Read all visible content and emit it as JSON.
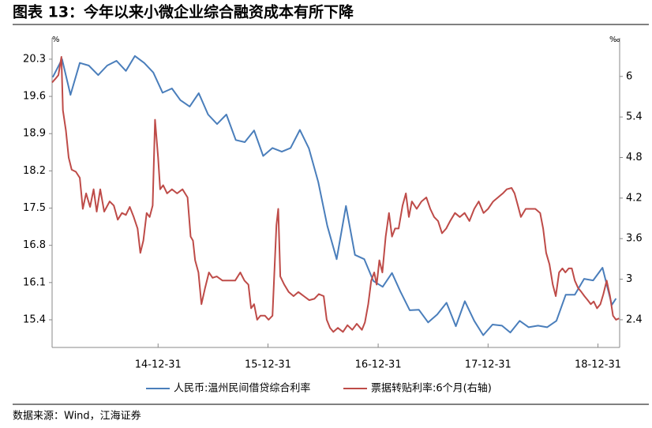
{
  "chart_data": {
    "type": "line",
    "title": "图表 13：今年以来小微企业综合融资成本有所下降",
    "source": "数据来源：Wind，江海证券",
    "y_unit": "%",
    "y2_unit": "‰",
    "xlim": [
      "14-01-13",
      "19-03-13"
    ],
    "xticks": [
      "14-12-31",
      "15-12-31",
      "16-12-31",
      "17-12-31",
      "18-12-31"
    ],
    "ylim": [
      14.88,
      20.7
    ],
    "yticks": [
      15.4,
      16.1,
      16.8,
      17.5,
      18.2,
      18.9,
      19.6,
      20.3
    ],
    "y2lim": [
      1.99,
      6.57
    ],
    "y2ticks": [
      2.4,
      3.0,
      3.6,
      4.2,
      4.8,
      5.4,
      6.0
    ],
    "series": [
      {
        "name": "人民币:温州民间借贷综合利率",
        "color": "#4a7ebb",
        "x": [
          "14-01-15",
          "14-02-15",
          "14-03-15",
          "14-04-15",
          "14-05-15",
          "14-06-15",
          "14-07-15",
          "14-08-15",
          "14-09-15",
          "14-10-15",
          "14-11-15",
          "14-12-15",
          "15-01-15",
          "15-02-15",
          "15-03-15",
          "15-04-15",
          "15-05-15",
          "15-06-15",
          "15-07-15",
          "15-08-15",
          "15-09-15",
          "15-10-15",
          "15-11-15",
          "15-12-15",
          "16-01-15",
          "16-02-15",
          "16-03-15",
          "16-04-15",
          "16-05-15",
          "16-06-15",
          "16-07-15",
          "16-08-15",
          "16-09-15",
          "16-10-15",
          "16-11-15",
          "16-12-15",
          "17-01-15",
          "17-02-15",
          "17-03-15",
          "17-04-15",
          "17-05-15",
          "17-06-15",
          "17-07-15",
          "17-08-15",
          "17-09-15",
          "17-10-15",
          "17-11-15",
          "17-12-15",
          "18-01-15",
          "18-02-15",
          "18-03-15",
          "18-04-15",
          "18-05-15",
          "18-06-15",
          "18-07-15",
          "18-08-15",
          "18-09-15",
          "18-10-15",
          "18-11-15",
          "18-12-15",
          "19-01-15",
          "19-02-15",
          "19-03-01"
        ],
        "values": [
          19.96,
          20.3,
          19.63,
          20.23,
          20.18,
          20.0,
          20.18,
          20.27,
          20.08,
          20.36,
          20.23,
          20.05,
          19.67,
          19.75,
          19.53,
          19.41,
          19.66,
          19.26,
          19.08,
          19.26,
          18.78,
          18.74,
          18.96,
          18.48,
          18.63,
          18.56,
          18.63,
          18.97,
          18.62,
          17.99,
          17.17,
          16.54,
          17.54,
          16.62,
          16.54,
          16.13,
          16.02,
          16.28,
          15.93,
          15.58,
          15.59,
          15.35,
          15.5,
          15.72,
          15.28,
          15.75,
          15.38,
          15.11,
          15.31,
          15.29,
          15.16,
          15.38,
          15.26,
          15.29,
          15.26,
          15.38,
          15.87,
          15.87,
          16.17,
          16.14,
          16.38,
          15.68,
          15.8
        ]
      },
      {
        "name": "票据转贴利率:6个月(右轴)",
        "color": "#be4b48",
        "axis": "y2",
        "x": [
          "14-01-13",
          "14-01-23",
          "14-02-03",
          "14-02-13",
          "14-02-18",
          "14-02-28",
          "14-03-09",
          "14-03-19",
          "14-04-02",
          "14-04-15",
          "14-04-25",
          "14-05-06",
          "14-05-19",
          "14-05-31",
          "14-06-10",
          "14-06-22",
          "14-07-05",
          "14-07-23",
          "14-08-06",
          "14-08-19",
          "14-09-02",
          "14-09-15",
          "14-09-28",
          "14-10-11",
          "14-10-24",
          "14-11-02",
          "14-11-12",
          "14-11-23",
          "14-12-03",
          "14-12-13",
          "14-12-21",
          "14-12-31",
          "15-01-07",
          "15-01-17",
          "15-01-30",
          "15-02-15",
          "15-03-04",
          "15-03-22",
          "15-04-08",
          "15-04-18",
          "15-04-26",
          "15-05-03",
          "15-05-14",
          "15-05-24",
          "15-06-05",
          "15-06-18",
          "15-06-30",
          "15-07-14",
          "15-08-02",
          "15-08-23",
          "15-09-13",
          "15-09-30",
          "15-10-14",
          "15-10-27",
          "15-11-05",
          "15-11-15",
          "15-11-25",
          "15-12-06",
          "15-12-21",
          "16-01-02",
          "16-01-15",
          "16-01-28",
          "16-02-03",
          "16-02-10",
          "16-02-23",
          "16-03-09",
          "16-03-25",
          "16-04-10",
          "16-04-28",
          "16-05-16",
          "16-06-02",
          "16-06-17",
          "16-07-03",
          "16-07-13",
          "16-07-24",
          "16-08-04",
          "16-08-19",
          "16-09-05",
          "16-09-20",
          "16-10-06",
          "16-10-21",
          "16-11-07",
          "16-11-17",
          "16-11-28",
          "16-12-08",
          "16-12-18",
          "16-12-26",
          "17-01-04",
          "17-01-14",
          "17-01-25",
          "17-02-05",
          "17-02-15",
          "17-02-25",
          "17-03-09",
          "17-03-22",
          "17-04-02",
          "17-04-12",
          "17-04-22",
          "17-05-08",
          "17-05-24",
          "17-06-09",
          "17-06-22",
          "17-07-05",
          "17-07-18",
          "17-07-31",
          "17-08-14",
          "17-08-27",
          "17-09-12",
          "17-09-28",
          "17-10-14",
          "17-10-30",
          "17-11-15",
          "17-11-30",
          "17-12-16",
          "17-12-31",
          "18-01-17",
          "18-02-02",
          "18-02-18",
          "18-03-03",
          "18-03-19",
          "18-03-29",
          "18-04-09",
          "18-04-19",
          "18-05-05",
          "18-05-21",
          "18-06-06",
          "18-06-22",
          "18-07-02",
          "18-07-12",
          "18-07-23",
          "18-08-03",
          "18-08-13",
          "18-08-24",
          "18-09-04",
          "18-09-14",
          "18-09-25",
          "18-10-05",
          "18-10-15",
          "18-10-26",
          "18-11-06",
          "18-11-16",
          "18-11-27",
          "18-12-07",
          "18-12-17",
          "18-12-28",
          "19-01-08",
          "19-01-18",
          "19-01-29",
          "19-02-09",
          "19-02-19",
          "19-03-01",
          "19-03-11"
        ],
        "values": [
          5.91,
          5.96,
          6.02,
          6.29,
          5.5,
          5.2,
          4.8,
          4.62,
          4.59,
          4.5,
          4.04,
          4.27,
          4.07,
          4.33,
          4.0,
          4.33,
          4.0,
          4.15,
          4.09,
          3.88,
          3.98,
          3.95,
          4.07,
          3.92,
          3.75,
          3.39,
          3.57,
          3.98,
          3.92,
          4.09,
          5.36,
          4.8,
          4.33,
          4.39,
          4.27,
          4.33,
          4.27,
          4.33,
          4.21,
          3.63,
          3.57,
          3.28,
          3.1,
          2.63,
          2.87,
          3.1,
          3.02,
          3.04,
          2.98,
          2.98,
          2.98,
          3.1,
          2.98,
          2.92,
          2.57,
          2.63,
          2.4,
          2.46,
          2.46,
          2.4,
          2.46,
          3.8,
          4.04,
          3.04,
          2.92,
          2.81,
          2.75,
          2.81,
          2.75,
          2.69,
          2.71,
          2.78,
          2.75,
          2.4,
          2.28,
          2.22,
          2.28,
          2.22,
          2.32,
          2.25,
          2.34,
          2.25,
          2.36,
          2.63,
          2.98,
          3.1,
          2.92,
          3.28,
          3.1,
          3.63,
          3.98,
          3.63,
          3.75,
          3.75,
          4.09,
          4.27,
          3.92,
          4.15,
          4.04,
          4.15,
          4.21,
          4.04,
          3.92,
          3.86,
          3.68,
          3.75,
          3.86,
          3.98,
          3.92,
          3.98,
          3.86,
          4.04,
          4.15,
          3.98,
          4.04,
          4.15,
          4.21,
          4.27,
          4.33,
          4.35,
          4.27,
          4.09,
          3.92,
          4.04,
          4.04,
          4.04,
          3.98,
          3.75,
          3.39,
          3.22,
          2.92,
          2.75,
          3.1,
          3.16,
          3.1,
          3.16,
          3.16,
          2.98,
          2.87,
          2.81,
          2.75,
          2.69,
          2.63,
          2.67,
          2.57,
          2.63,
          2.78,
          2.98,
          2.75,
          2.46,
          2.4,
          2.42
        ]
      }
    ]
  }
}
